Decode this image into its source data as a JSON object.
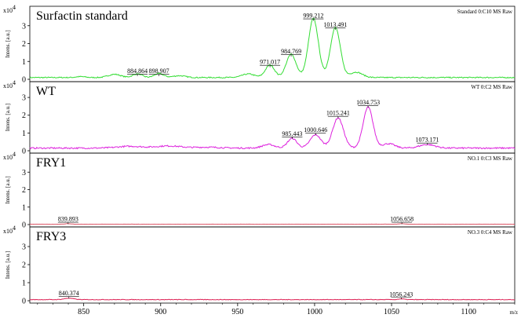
{
  "chart_data": {
    "type": "line",
    "x_range": [
      815,
      1130
    ],
    "x_ticks": [
      850,
      900,
      950,
      1000,
      1050,
      1100
    ],
    "x_unit": "m/z",
    "y_label": "Intens. [a.u.]",
    "y_exponent": "x10",
    "y_exponent_power": "4",
    "panels": [
      {
        "name": "Surfactin standard",
        "info": "Standard 0:C10 MS Raw",
        "color": "#33dd33",
        "ylim": [
          0,
          4.0
        ],
        "y_ticks": [
          "0",
          "1",
          "2",
          "3"
        ],
        "baseline": 0.1,
        "noise": 0.03,
        "peaks": [
          {
            "mz": 848,
            "h": 0.05,
            "w": 3
          },
          {
            "mz": 870,
            "h": 0.18,
            "w": 4
          },
          {
            "mz": 884.864,
            "h": 0.2,
            "w": 3
          },
          {
            "mz": 898.907,
            "h": 0.22,
            "w": 3
          },
          {
            "mz": 912,
            "h": 0.1,
            "w": 4
          },
          {
            "mz": 957,
            "h": 0.2,
            "w": 4
          },
          {
            "mz": 971.017,
            "h": 0.7,
            "w": 3
          },
          {
            "mz": 984.769,
            "h": 1.3,
            "w": 3.2
          },
          {
            "mz": 999.212,
            "h": 3.3,
            "w": 3.2
          },
          {
            "mz": 1013.491,
            "h": 2.8,
            "w": 3.2
          },
          {
            "mz": 1027,
            "h": 0.3,
            "w": 4
          }
        ],
        "labels": [
          {
            "text": "884.864",
            "mz": 884.864,
            "y": 0.35
          },
          {
            "text": "898.907",
            "mz": 898.907,
            "y": 0.35
          },
          {
            "text": "971.017",
            "mz": 971.017,
            "y": 0.85
          },
          {
            "text": "984.769",
            "mz": 984.769,
            "y": 1.45
          },
          {
            "text": "999.212",
            "mz": 999.212,
            "y": 3.45
          },
          {
            "text": "1013.491",
            "mz": 1013.491,
            "y": 2.95
          }
        ]
      },
      {
        "name": "WT",
        "info": "WT 0:C2 MS Raw",
        "color": "#dd22dd",
        "ylim": [
          0,
          3.8
        ],
        "y_ticks": [
          "0",
          "1",
          "2",
          "3"
        ],
        "baseline": 0.15,
        "noise": 0.04,
        "peaks": [
          {
            "mz": 880,
            "h": 0.1,
            "w": 8
          },
          {
            "mz": 905,
            "h": 0.12,
            "w": 8
          },
          {
            "mz": 930,
            "h": 0.05,
            "w": 8
          },
          {
            "mz": 970,
            "h": 0.2,
            "w": 4
          },
          {
            "mz": 985.443,
            "h": 0.55,
            "w": 3
          },
          {
            "mz": 1000.646,
            "h": 0.75,
            "w": 3.5
          },
          {
            "mz": 1015.241,
            "h": 1.7,
            "w": 3.5
          },
          {
            "mz": 1034.753,
            "h": 2.3,
            "w": 3.2
          },
          {
            "mz": 1048,
            "h": 0.25,
            "w": 4
          },
          {
            "mz": 1073.171,
            "h": 0.2,
            "w": 5
          }
        ],
        "labels": [
          {
            "text": "985.443",
            "mz": 985.443,
            "y": 0.85
          },
          {
            "text": "1000.646",
            "mz": 1000.646,
            "y": 1.05
          },
          {
            "text": "1015.241",
            "mz": 1015.241,
            "y": 2.0
          },
          {
            "text": "1034.753",
            "mz": 1034.753,
            "y": 2.6
          },
          {
            "text": "1073.171",
            "mz": 1073.171,
            "y": 0.5
          }
        ]
      },
      {
        "name": "FRY1",
        "info": "NO.1 0:C3 MS Raw",
        "color": "#dd5566",
        "ylim": [
          0,
          4.0
        ],
        "y_ticks": [
          "0",
          "1",
          "2",
          "3"
        ],
        "baseline": 0.02,
        "noise": 0.005,
        "peaks": [
          {
            "mz": 839.893,
            "h": 0.03,
            "w": 2
          },
          {
            "mz": 1056.658,
            "h": 0.03,
            "w": 2
          }
        ],
        "labels": [
          {
            "text": "839.893",
            "mz": 839.893,
            "y": 0.2
          },
          {
            "text": "1056.658",
            "mz": 1056.658,
            "y": 0.2
          }
        ]
      },
      {
        "name": "FRY3",
        "info": "NO.3 0:C4 MS Raw",
        "color": "#dd2255",
        "ylim": [
          0,
          4.0
        ],
        "y_ticks": [
          "0",
          "1",
          "2",
          "3"
        ],
        "baseline": 0.06,
        "noise": 0.015,
        "peaks": [
          {
            "mz": 840.374,
            "h": 0.08,
            "w": 3
          },
          {
            "mz": 1056.243,
            "h": 0.04,
            "w": 2
          }
        ],
        "labels": [
          {
            "text": "840.374",
            "mz": 840.374,
            "y": 0.3
          },
          {
            "text": "1056.243",
            "mz": 1056.243,
            "y": 0.25
          }
        ]
      }
    ]
  }
}
